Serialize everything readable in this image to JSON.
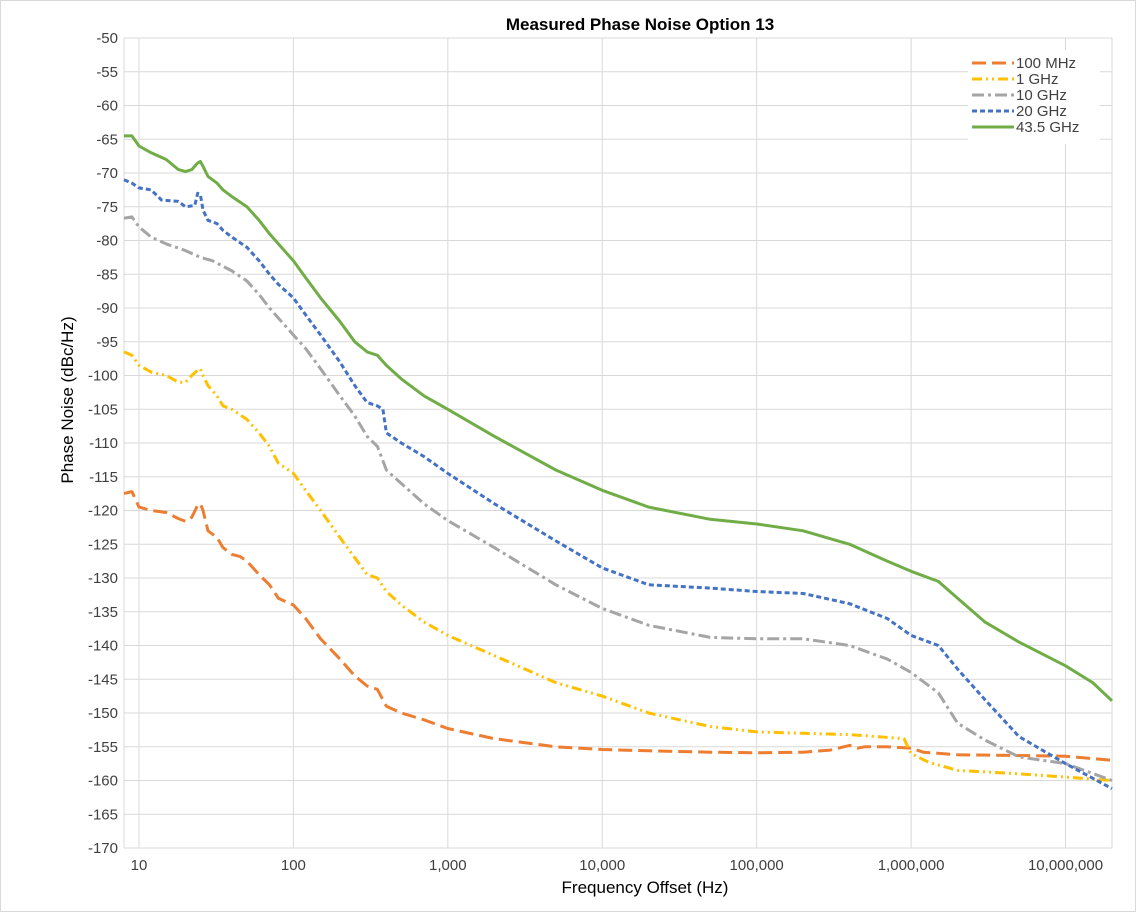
{
  "chart_data": {
    "type": "line",
    "title": "Measured Phase Noise Option 13",
    "xlabel": "Frequency Offset (Hz)",
    "ylabel": "Phase Noise (dBc/Hz)",
    "x_scale": "log",
    "xlim": [
      8,
      20000000
    ],
    "ylim": [
      -170,
      -50
    ],
    "x_ticks": [
      10,
      100,
      1000,
      10000,
      100000,
      1000000,
      10000000
    ],
    "x_tick_labels": [
      "10",
      "100",
      "1,000",
      "10,000",
      "100,000",
      "1,000,000",
      "10,000,000"
    ],
    "y_ticks": [
      -50,
      -55,
      -60,
      -65,
      -70,
      -75,
      -80,
      -85,
      -90,
      -95,
      -100,
      -105,
      -110,
      -115,
      -120,
      -125,
      -130,
      -135,
      -140,
      -145,
      -150,
      -155,
      -160,
      -165,
      -170
    ],
    "grid": true,
    "legend_position": "top-right",
    "series": [
      {
        "name": "100 MHz",
        "color": "#ED7D31",
        "dash": "long-dash",
        "points": [
          [
            8,
            -117.5
          ],
          [
            9,
            -117.2
          ],
          [
            10,
            -119.5
          ],
          [
            12,
            -120
          ],
          [
            15,
            -120.3
          ],
          [
            18,
            -121.2
          ],
          [
            20,
            -121.6
          ],
          [
            22,
            -121
          ],
          [
            24,
            -119.2
          ],
          [
            25,
            -119
          ],
          [
            26,
            -120
          ],
          [
            28,
            -123
          ],
          [
            32,
            -124
          ],
          [
            35,
            -125.5
          ],
          [
            40,
            -126.5
          ],
          [
            45,
            -126.8
          ],
          [
            50,
            -127.5
          ],
          [
            60,
            -129.5
          ],
          [
            70,
            -131
          ],
          [
            80,
            -133
          ],
          [
            100,
            -134
          ],
          [
            120,
            -136
          ],
          [
            150,
            -139
          ],
          [
            200,
            -142
          ],
          [
            250,
            -144.5
          ],
          [
            300,
            -146
          ],
          [
            350,
            -146.5
          ],
          [
            400,
            -149
          ],
          [
            500,
            -150
          ],
          [
            700,
            -151
          ],
          [
            1000,
            -152.3
          ],
          [
            2000,
            -153.8
          ],
          [
            5000,
            -155
          ],
          [
            10000,
            -155.4
          ],
          [
            20000,
            -155.6
          ],
          [
            50000,
            -155.8
          ],
          [
            100000,
            -155.9
          ],
          [
            200000,
            -155.8
          ],
          [
            300000,
            -155.5
          ],
          [
            400000,
            -154.8
          ],
          [
            450000,
            -155.2
          ],
          [
            500000,
            -155
          ],
          [
            700000,
            -155
          ],
          [
            1000000,
            -155.2
          ],
          [
            1200000,
            -155.8
          ],
          [
            2000000,
            -156.2
          ],
          [
            5000000,
            -156.3
          ],
          [
            10000000,
            -156.4
          ],
          [
            20000000,
            -157
          ]
        ]
      },
      {
        "name": "1 GHz",
        "color": "#FFC000",
        "dash": "dash-dot-dot",
        "points": [
          [
            8,
            -96.5
          ],
          [
            9,
            -97
          ],
          [
            10,
            -98.5
          ],
          [
            12,
            -99.5
          ],
          [
            15,
            -100
          ],
          [
            18,
            -101
          ],
          [
            20,
            -101
          ],
          [
            22,
            -100
          ],
          [
            24,
            -99.2
          ],
          [
            25,
            -99
          ],
          [
            26,
            -100
          ],
          [
            28,
            -101.5
          ],
          [
            32,
            -103
          ],
          [
            35,
            -104.5
          ],
          [
            40,
            -105
          ],
          [
            50,
            -106.5
          ],
          [
            60,
            -108.5
          ],
          [
            70,
            -110.5
          ],
          [
            80,
            -113
          ],
          [
            100,
            -114.5
          ],
          [
            120,
            -117
          ],
          [
            150,
            -120
          ],
          [
            200,
            -124
          ],
          [
            250,
            -127
          ],
          [
            300,
            -129.5
          ],
          [
            350,
            -130
          ],
          [
            400,
            -132
          ],
          [
            500,
            -134
          ],
          [
            700,
            -136.5
          ],
          [
            1000,
            -138.5
          ],
          [
            2000,
            -141.5
          ],
          [
            5000,
            -145.5
          ],
          [
            10000,
            -147.5
          ],
          [
            20000,
            -150
          ],
          [
            50000,
            -152
          ],
          [
            100000,
            -152.8
          ],
          [
            200000,
            -153
          ],
          [
            400000,
            -153.2
          ],
          [
            600000,
            -153.5
          ],
          [
            900000,
            -153.8
          ],
          [
            1000000,
            -156
          ],
          [
            1300000,
            -157.3
          ],
          [
            2000000,
            -158.5
          ],
          [
            5000000,
            -159
          ],
          [
            10000000,
            -159.5
          ],
          [
            20000000,
            -160
          ]
        ]
      },
      {
        "name": "10 GHz",
        "color": "#A5A5A5",
        "dash": "dash-dot",
        "points": [
          [
            8,
            -76.7
          ],
          [
            9,
            -76.5
          ],
          [
            10,
            -78
          ],
          [
            12,
            -79.5
          ],
          [
            15,
            -80.5
          ],
          [
            20,
            -81.5
          ],
          [
            25,
            -82.5
          ],
          [
            30,
            -83
          ],
          [
            40,
            -84.5
          ],
          [
            50,
            -86
          ],
          [
            60,
            -88
          ],
          [
            70,
            -90
          ],
          [
            80,
            -91.5
          ],
          [
            100,
            -94
          ],
          [
            120,
            -96
          ],
          [
            150,
            -99
          ],
          [
            200,
            -103
          ],
          [
            250,
            -106
          ],
          [
            300,
            -109
          ],
          [
            350,
            -110.5
          ],
          [
            400,
            -114
          ],
          [
            500,
            -116
          ],
          [
            700,
            -119
          ],
          [
            1000,
            -121.5
          ],
          [
            2000,
            -125.5
          ],
          [
            5000,
            -131
          ],
          [
            10000,
            -134.5
          ],
          [
            20000,
            -137
          ],
          [
            50000,
            -138.8
          ],
          [
            100000,
            -139
          ],
          [
            200000,
            -139
          ],
          [
            400000,
            -140
          ],
          [
            700000,
            -142
          ],
          [
            1000000,
            -144
          ],
          [
            1500000,
            -147
          ],
          [
            2000000,
            -151.5
          ],
          [
            3000000,
            -154
          ],
          [
            5000000,
            -156.5
          ],
          [
            10000000,
            -157.5
          ],
          [
            20000000,
            -160
          ]
        ]
      },
      {
        "name": "20 GHz",
        "color": "#4472C4",
        "dash": "short-dash",
        "points": [
          [
            8,
            -71
          ],
          [
            9,
            -71.5
          ],
          [
            10,
            -72.2
          ],
          [
            12,
            -72.5
          ],
          [
            14,
            -74
          ],
          [
            18,
            -74.2
          ],
          [
            20,
            -75
          ],
          [
            23,
            -74.8
          ],
          [
            24,
            -73
          ],
          [
            25,
            -73.2
          ],
          [
            26,
            -75.5
          ],
          [
            28,
            -77
          ],
          [
            32,
            -77.5
          ],
          [
            35,
            -78.5
          ],
          [
            40,
            -79.5
          ],
          [
            50,
            -81
          ],
          [
            60,
            -83
          ],
          [
            70,
            -85
          ],
          [
            80,
            -86.5
          ],
          [
            100,
            -88.5
          ],
          [
            120,
            -91
          ],
          [
            150,
            -94
          ],
          [
            200,
            -98
          ],
          [
            250,
            -101.5
          ],
          [
            300,
            -104
          ],
          [
            350,
            -104.5
          ],
          [
            380,
            -105
          ],
          [
            400,
            -108.5
          ],
          [
            500,
            -110
          ],
          [
            700,
            -112
          ],
          [
            1000,
            -114.5
          ],
          [
            2000,
            -119
          ],
          [
            5000,
            -124.5
          ],
          [
            10000,
            -128.5
          ],
          [
            20000,
            -131
          ],
          [
            50000,
            -131.5
          ],
          [
            100000,
            -132
          ],
          [
            200000,
            -132.3
          ],
          [
            400000,
            -133.8
          ],
          [
            700000,
            -136
          ],
          [
            1000000,
            -138.5
          ],
          [
            1500000,
            -140
          ],
          [
            2000000,
            -143.5
          ],
          [
            3000000,
            -148
          ],
          [
            5000000,
            -153.5
          ],
          [
            10000000,
            -157.5
          ],
          [
            20000000,
            -161.2
          ]
        ]
      },
      {
        "name": "43.5 GHz",
        "color": "#70AD47",
        "dash": "solid",
        "points": [
          [
            8,
            -64.5
          ],
          [
            9,
            -64.5
          ],
          [
            10,
            -66
          ],
          [
            12,
            -67
          ],
          [
            15,
            -68
          ],
          [
            18,
            -69.5
          ],
          [
            20,
            -69.8
          ],
          [
            22,
            -69.5
          ],
          [
            24,
            -68.5
          ],
          [
            25,
            -68.3
          ],
          [
            26,
            -69
          ],
          [
            28,
            -70.5
          ],
          [
            32,
            -71.5
          ],
          [
            35,
            -72.5
          ],
          [
            40,
            -73.5
          ],
          [
            50,
            -75
          ],
          [
            60,
            -77
          ],
          [
            70,
            -79
          ],
          [
            80,
            -80.5
          ],
          [
            100,
            -83
          ],
          [
            120,
            -85.5
          ],
          [
            150,
            -88.5
          ],
          [
            200,
            -92
          ],
          [
            250,
            -95
          ],
          [
            300,
            -96.5
          ],
          [
            350,
            -97
          ],
          [
            400,
            -98.5
          ],
          [
            500,
            -100.5
          ],
          [
            700,
            -103
          ],
          [
            1000,
            -105
          ],
          [
            2000,
            -109
          ],
          [
            5000,
            -114
          ],
          [
            10000,
            -117
          ],
          [
            20000,
            -119.5
          ],
          [
            50000,
            -121.3
          ],
          [
            100000,
            -122
          ],
          [
            200000,
            -123
          ],
          [
            400000,
            -125
          ],
          [
            700000,
            -127.5
          ],
          [
            1000000,
            -129
          ],
          [
            1500000,
            -130.5
          ],
          [
            2000000,
            -133
          ],
          [
            3000000,
            -136.5
          ],
          [
            5000000,
            -139.5
          ],
          [
            10000000,
            -143
          ],
          [
            15000000,
            -145.5
          ],
          [
            20000000,
            -148.2
          ]
        ]
      }
    ]
  }
}
